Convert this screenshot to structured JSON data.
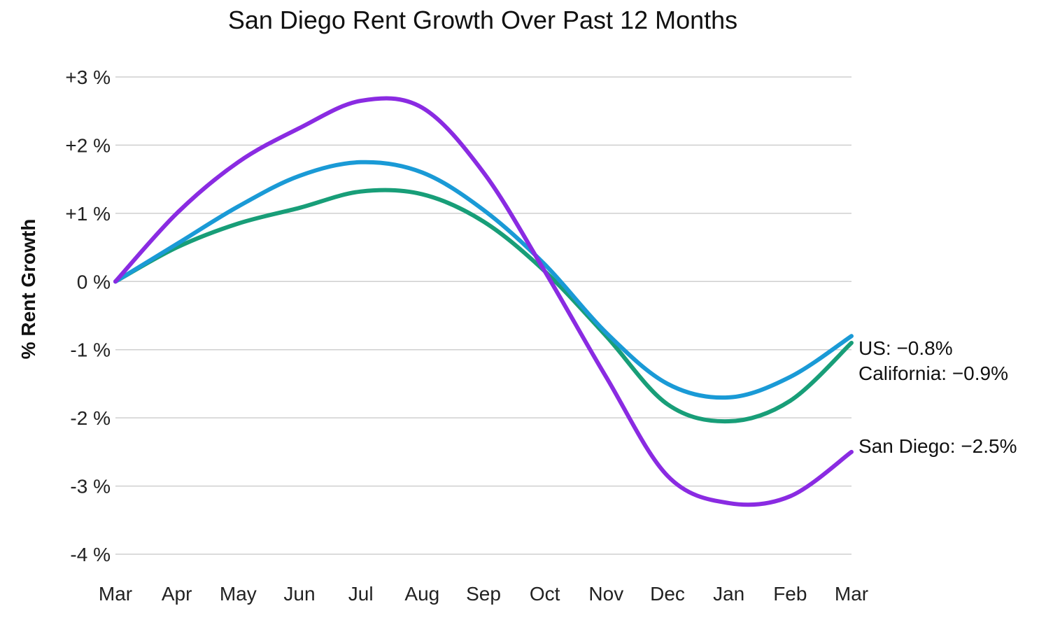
{
  "chart_data": {
    "type": "line",
    "title": "San Diego Rent Growth Over Past 12 Months",
    "xlabel": "",
    "ylabel": "% Rent Growth",
    "x": [
      "Mar",
      "Apr",
      "May",
      "Jun",
      "Jul",
      "Aug",
      "Sep",
      "Oct",
      "Nov",
      "Dec",
      "Jan",
      "Feb",
      "Mar"
    ],
    "ylim": [
      -4,
      3
    ],
    "yticks": [
      3,
      2,
      1,
      0,
      -1,
      -2,
      -3,
      -4
    ],
    "ytick_labels": [
      "+3 %",
      "+2 %",
      "+1 %",
      "0 %",
      "-1 %",
      "-2 %",
      "-3 %",
      "-4 %"
    ],
    "grid": true,
    "series": [
      {
        "name": "US",
        "color": "#1a9ad6",
        "values": [
          0,
          0.55,
          1.1,
          1.55,
          1.75,
          1.6,
          1.05,
          0.25,
          -0.75,
          -1.5,
          -1.7,
          -1.4,
          -0.8
        ],
        "end_label": "US: −0.8%"
      },
      {
        "name": "California",
        "color": "#189e78",
        "values": [
          0,
          0.5,
          0.85,
          1.08,
          1.32,
          1.28,
          0.88,
          0.15,
          -0.8,
          -1.8,
          -2.05,
          -1.75,
          -0.9
        ],
        "end_label": "California: −0.9%"
      },
      {
        "name": "San Diego",
        "color": "#8a2be2",
        "values": [
          0,
          1.0,
          1.75,
          2.25,
          2.65,
          2.55,
          1.6,
          0.15,
          -1.4,
          -2.85,
          -3.25,
          -3.15,
          -2.5
        ],
        "end_label": "San Diego: −2.5%"
      }
    ]
  }
}
